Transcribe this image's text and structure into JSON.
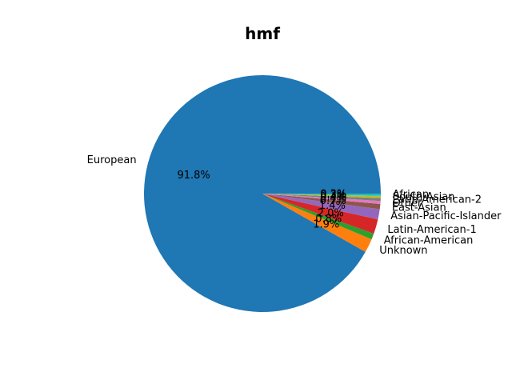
{
  "chart_data": {
    "type": "pie",
    "title": "hmf",
    "slices": [
      {
        "label": "European",
        "value": 91.8,
        "pct_text": "91.8%",
        "color": "#1f77b4"
      },
      {
        "label": "Unknown",
        "value": 1.9,
        "pct_text": "1.9%",
        "color": "#ff7f0e"
      },
      {
        "label": "African-American",
        "value": 0.8,
        "pct_text": "0.8%",
        "color": "#2ca02c"
      },
      {
        "label": "Latin-American-1",
        "value": 2.0,
        "pct_text": "2.0%",
        "color": "#d62728"
      },
      {
        "label": "Asian-Pacific-Islander",
        "value": 1.4,
        "pct_text": "1.4%",
        "color": "#9467bd"
      },
      {
        "label": "East-Asian",
        "value": 0.7,
        "pct_text": "0.7%",
        "color": "#8c564b"
      },
      {
        "label": "Other",
        "value": 0.4,
        "pct_text": "0.4%",
        "color": "#e377c2"
      },
      {
        "label": "Latin-American-2",
        "value": 0.4,
        "pct_text": "0.4%",
        "color": "#7f7f7f"
      },
      {
        "label": "South-Asian",
        "value": 0.3,
        "pct_text": "0.3%",
        "color": "#bcbd22"
      },
      {
        "label": "African",
        "value": 0.3,
        "pct_text": "0.3%",
        "color": "#17becf"
      }
    ]
  }
}
